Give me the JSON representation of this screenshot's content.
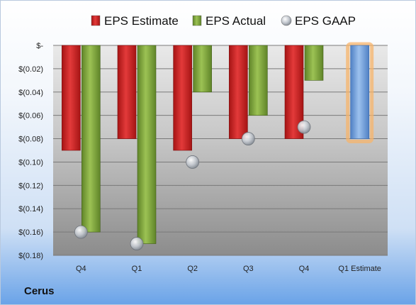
{
  "company": "Cerus",
  "colors": {
    "estimate": "#d42a2a",
    "actual": "#84ab3e",
    "gaap": "#b8bec6",
    "future_estimate": "#6e9fdb",
    "future_glow": "#f7b46b"
  },
  "chart_data": {
    "type": "bar",
    "categories": [
      "Q4",
      "Q1",
      "Q2",
      "Q3",
      "Q4",
      "Q1 Estimate"
    ],
    "series": [
      {
        "name": "EPS Estimate",
        "values": [
          -0.09,
          -0.08,
          -0.09,
          -0.08,
          -0.08,
          -0.08
        ]
      },
      {
        "name": "EPS Actual",
        "values": [
          -0.16,
          -0.17,
          -0.04,
          -0.06,
          -0.03,
          null
        ]
      },
      {
        "name": "EPS GAAP",
        "values": [
          -0.16,
          -0.17,
          -0.1,
          -0.08,
          -0.07,
          null
        ]
      }
    ],
    "yticks": [
      "$-",
      "$(0.02)",
      "$(0.04)",
      "$(0.06)",
      "$(0.08)",
      "$(0.10)",
      "$(0.12)",
      "$(0.14)",
      "$(0.16)",
      "$(0.18)"
    ],
    "ylim": [
      -0.18,
      0
    ],
    "legend": "top",
    "grid": true
  }
}
